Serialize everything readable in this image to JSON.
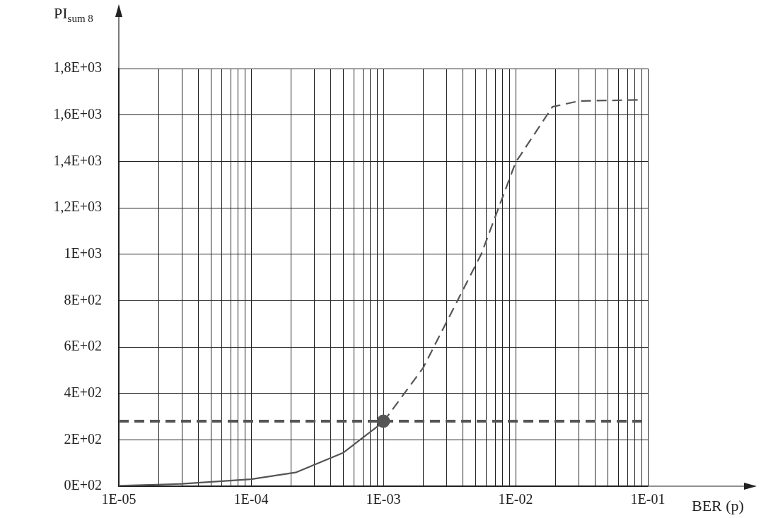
{
  "chart_data": {
    "type": "line",
    "xlabel": "BER (p)",
    "ylabel": "PI$_{sum 8}$",
    "log": "x",
    "grid": true,
    "legend": false,
    "xlim": [
      1e-05,
      0.1
    ],
    "ylim": [
      0,
      1800
    ],
    "xticks": [
      {
        "value": 1e-05,
        "label": "1E-05"
      },
      {
        "value": 2e-05,
        "label": null
      },
      {
        "value": 3e-05,
        "label": null
      },
      {
        "value": 4e-05,
        "label": null
      },
      {
        "value": 5e-05,
        "label": null
      },
      {
        "value": 6e-05,
        "label": null
      },
      {
        "value": 7e-05,
        "label": null
      },
      {
        "value": 8e-05,
        "label": null
      },
      {
        "value": 9e-05,
        "label": null
      },
      {
        "value": 0.0001,
        "label": "1E-04"
      },
      {
        "value": 0.0002,
        "label": null
      },
      {
        "value": 0.0003,
        "label": null
      },
      {
        "value": 0.0004,
        "label": null
      },
      {
        "value": 0.0005,
        "label": null
      },
      {
        "value": 0.0006,
        "label": null
      },
      {
        "value": 0.0007,
        "label": null
      },
      {
        "value": 0.0008,
        "label": null
      },
      {
        "value": 0.0009,
        "label": null
      },
      {
        "value": 0.001,
        "label": "1E-03"
      },
      {
        "value": 0.002,
        "label": null
      },
      {
        "value": 0.003,
        "label": null
      },
      {
        "value": 0.004,
        "label": null
      },
      {
        "value": 0.005,
        "label": null
      },
      {
        "value": 0.006,
        "label": null
      },
      {
        "value": 0.007,
        "label": null
      },
      {
        "value": 0.008,
        "label": null
      },
      {
        "value": 0.009,
        "label": null
      },
      {
        "value": 0.01,
        "label": "1E-02"
      },
      {
        "value": 0.02,
        "label": null
      },
      {
        "value": 0.03,
        "label": null
      },
      {
        "value": 0.04,
        "label": null
      },
      {
        "value": 0.05,
        "label": null
      },
      {
        "value": 0.06,
        "label": null
      },
      {
        "value": 0.07,
        "label": null
      },
      {
        "value": 0.08,
        "label": null
      },
      {
        "value": 0.09,
        "label": null
      },
      {
        "value": 0.1,
        "label": "1E-01"
      }
    ],
    "yticks": [
      {
        "value": 0,
        "label": "0E+02"
      },
      {
        "value": 200,
        "label": "2E+02"
      },
      {
        "value": 400,
        "label": "4E+02"
      },
      {
        "value": 600,
        "label": "6E+02"
      },
      {
        "value": 800,
        "label": "8E+02"
      },
      {
        "value": 1000,
        "label": "1E+03"
      },
      {
        "value": 1200,
        "label": "1,2E+03"
      },
      {
        "value": 1400,
        "label": "1,4E+03"
      },
      {
        "value": 1600,
        "label": "1,6E+03"
      },
      {
        "value": 1800,
        "label": "1,8E+03"
      }
    ],
    "series": [
      {
        "type": "line",
        "color": "#555555",
        "line_style": "solid",
        "marker": "none",
        "x": [
          1e-05,
          3e-05,
          0.0001,
          0.00022,
          0.0005,
          0.001
        ],
        "values": [
          2,
          10,
          30,
          60,
          145,
          277
        ]
      },
      {
        "type": "line",
        "color": "#555555",
        "line_style": "dashed",
        "marker": "none",
        "x": [
          0.001,
          0.002,
          0.0055,
          0.01,
          0.019,
          0.03,
          0.085
        ],
        "values": [
          277,
          510,
          1000,
          1395,
          1635,
          1660,
          1665
        ]
      },
      {
        "type": "scatter",
        "color": "#555555",
        "marker": "circle",
        "x": [
          0.001
        ],
        "values": [
          280
        ]
      }
    ],
    "ref_lines": [
      {
        "axis": "y",
        "value": 280,
        "color": "#555555",
        "line_style": "dashed"
      }
    ]
  }
}
